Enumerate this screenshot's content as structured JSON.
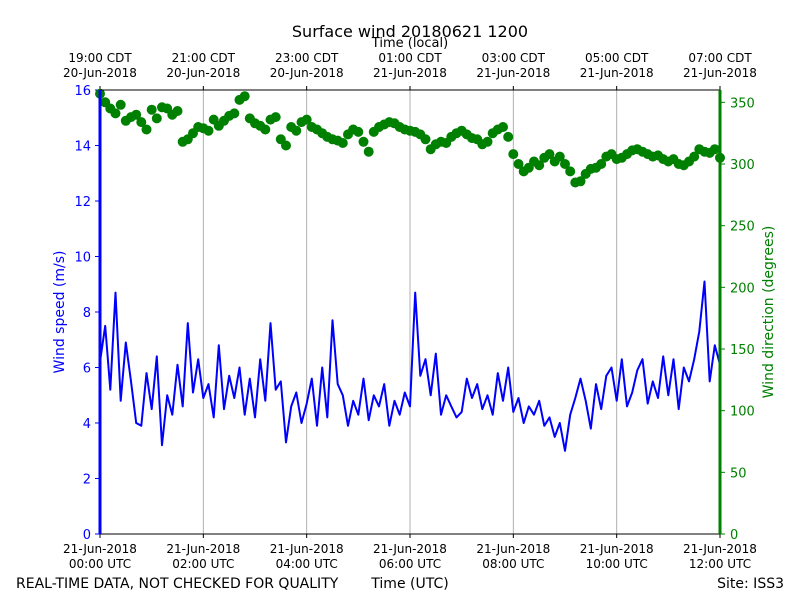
{
  "chart_data": {
    "type": "line",
    "title": "Surface wind 20180621 1200",
    "top_axis_label": "Time (local)",
    "xlabel": "Time (UTC)",
    "ylabel_left": "Wind speed (m/s)",
    "ylabel_right": "Wind direction (degrees)",
    "footer_left": "REAL-TIME DATA, NOT CHECKED FOR QUALITY",
    "footer_right": "Site: ISS3",
    "x_range_hours": [
      0,
      12
    ],
    "ylim_left": [
      0,
      16
    ],
    "ylim_right": [
      0,
      360
    ],
    "left_ticks": [
      "0",
      "2",
      "4",
      "6",
      "8",
      "10",
      "12",
      "14",
      "16"
    ],
    "right_ticks": [
      "0",
      "50",
      "100",
      "150",
      "200",
      "250",
      "300",
      "350"
    ],
    "bottom_ticks": [
      {
        "hour": 0,
        "line1": "21-Jun-2018",
        "line2": "00:00 UTC"
      },
      {
        "hour": 2,
        "line1": "21-Jun-2018",
        "line2": "02:00 UTC"
      },
      {
        "hour": 4,
        "line1": "21-Jun-2018",
        "line2": "04:00 UTC"
      },
      {
        "hour": 6,
        "line1": "21-Jun-2018",
        "line2": "06:00 UTC"
      },
      {
        "hour": 8,
        "line1": "21-Jun-2018",
        "line2": "08:00 UTC"
      },
      {
        "hour": 10,
        "line1": "21-Jun-2018",
        "line2": "10:00 UTC"
      },
      {
        "hour": 12,
        "line1": "21-Jun-2018",
        "line2": "12:00 UTC"
      }
    ],
    "top_ticks": [
      {
        "hour": 0,
        "line1": "19:00 CDT",
        "line2": "20-Jun-2018"
      },
      {
        "hour": 2,
        "line1": "21:00 CDT",
        "line2": "20-Jun-2018"
      },
      {
        "hour": 4,
        "line1": "23:00 CDT",
        "line2": "20-Jun-2018"
      },
      {
        "hour": 6,
        "line1": "01:00 CDT",
        "line2": "21-Jun-2018"
      },
      {
        "hour": 8,
        "line1": "03:00 CDT",
        "line2": "21-Jun-2018"
      },
      {
        "hour": 10,
        "line1": "05:00 CDT",
        "line2": "21-Jun-2018"
      },
      {
        "hour": 12,
        "line1": "07:00 CDT",
        "line2": "21-Jun-2018"
      }
    ],
    "grid_x": true,
    "colors": {
      "speed": "#0000ff",
      "direction": "#008000",
      "grid": "#b0b0b0",
      "text": "#000000"
    },
    "series": [
      {
        "name": "Wind speed",
        "axis": "left",
        "style": "line",
        "hours": [
          0.0,
          0.1,
          0.2,
          0.3,
          0.4,
          0.5,
          0.6,
          0.7,
          0.8,
          0.9,
          1.0,
          1.1,
          1.2,
          1.3,
          1.4,
          1.5,
          1.6,
          1.7,
          1.8,
          1.9,
          2.0,
          2.1,
          2.2,
          2.3,
          2.4,
          2.5,
          2.6,
          2.7,
          2.8,
          2.9,
          3.0,
          3.1,
          3.2,
          3.3,
          3.4,
          3.5,
          3.6,
          3.7,
          3.8,
          3.9,
          4.0,
          4.1,
          4.2,
          4.3,
          4.4,
          4.5,
          4.6,
          4.7,
          4.8,
          4.9,
          5.0,
          5.1,
          5.2,
          5.3,
          5.4,
          5.5,
          5.6,
          5.7,
          5.8,
          5.9,
          6.0,
          6.1,
          6.2,
          6.3,
          6.4,
          6.5,
          6.6,
          6.7,
          6.8,
          6.9,
          7.0,
          7.1,
          7.2,
          7.3,
          7.4,
          7.5,
          7.6,
          7.7,
          7.8,
          7.9,
          8.0,
          8.1,
          8.2,
          8.3,
          8.4,
          8.5,
          8.6,
          8.7,
          8.8,
          8.9,
          9.0,
          9.1,
          9.2,
          9.3,
          9.4,
          9.5,
          9.6,
          9.7,
          9.8,
          9.9,
          10.0,
          10.1,
          10.2,
          10.3,
          10.4,
          10.5,
          10.6,
          10.7,
          10.8,
          10.9,
          11.0,
          11.1,
          11.2,
          11.3,
          11.4,
          11.5,
          11.6,
          11.7,
          11.8,
          11.9,
          12.0
        ],
        "values": [
          6.2,
          7.5,
          5.2,
          8.7,
          4.8,
          6.9,
          5.5,
          4.0,
          3.9,
          5.8,
          4.5,
          6.4,
          3.2,
          5.0,
          4.3,
          6.1,
          4.6,
          7.6,
          5.1,
          6.3,
          4.9,
          5.4,
          4.2,
          6.8,
          4.5,
          5.7,
          4.9,
          6.0,
          4.3,
          5.6,
          4.2,
          6.3,
          4.8,
          7.6,
          5.2,
          5.5,
          3.3,
          4.6,
          5.1,
          4.0,
          4.7,
          5.6,
          3.9,
          6.0,
          4.2,
          7.7,
          5.4,
          5.0,
          3.9,
          4.8,
          4.3,
          5.6,
          4.1,
          5.0,
          4.6,
          5.4,
          3.9,
          4.8,
          4.3,
          5.1,
          4.6,
          8.7,
          5.7,
          6.3,
          5.0,
          6.5,
          4.3,
          5.0,
          4.6,
          4.2,
          4.4,
          5.6,
          4.9,
          5.4,
          4.5,
          5.0,
          4.3,
          5.8,
          4.8,
          6.0,
          4.4,
          4.9,
          4.0,
          4.6,
          4.3,
          4.8,
          3.9,
          4.2,
          3.5,
          4.0,
          3.0,
          4.3,
          4.9,
          5.6,
          4.8,
          3.8,
          5.4,
          4.5,
          5.7,
          6.0,
          4.8,
          6.3,
          4.6,
          5.1,
          5.9,
          6.3,
          4.7,
          5.5,
          4.9,
          6.4,
          5.0,
          6.3,
          4.5,
          6.0,
          5.5,
          6.3,
          7.3,
          9.1,
          5.5,
          6.8,
          6.1
        ]
      },
      {
        "name": "Wind direction",
        "axis": "right",
        "style": "markers",
        "hours": [
          0.0,
          0.1,
          0.2,
          0.3,
          0.4,
          0.5,
          0.6,
          0.7,
          0.8,
          0.9,
          1.0,
          1.1,
          1.2,
          1.3,
          1.4,
          1.5,
          1.6,
          1.7,
          1.8,
          1.9,
          2.0,
          2.1,
          2.2,
          2.3,
          2.4,
          2.5,
          2.6,
          2.7,
          2.8,
          2.9,
          3.0,
          3.1,
          3.2,
          3.3,
          3.4,
          3.5,
          3.6,
          3.7,
          3.8,
          3.9,
          4.0,
          4.1,
          4.2,
          4.3,
          4.4,
          4.5,
          4.6,
          4.7,
          4.8,
          4.9,
          5.0,
          5.1,
          5.2,
          5.3,
          5.4,
          5.5,
          5.6,
          5.7,
          5.8,
          5.9,
          6.0,
          6.1,
          6.2,
          6.3,
          6.4,
          6.5,
          6.6,
          6.7,
          6.8,
          6.9,
          7.0,
          7.1,
          7.2,
          7.3,
          7.4,
          7.5,
          7.6,
          7.7,
          7.8,
          7.9,
          8.0,
          8.1,
          8.2,
          8.3,
          8.4,
          8.5,
          8.6,
          8.7,
          8.8,
          8.9,
          9.0,
          9.1,
          9.2,
          9.3,
          9.4,
          9.5,
          9.6,
          9.7,
          9.8,
          9.9,
          10.0,
          10.1,
          10.2,
          10.3,
          10.4,
          10.5,
          10.6,
          10.7,
          10.8,
          10.9,
          11.0,
          11.1,
          11.2,
          11.3,
          11.4,
          11.5,
          11.6,
          11.7,
          11.8,
          11.9,
          12.0
        ],
        "values": [
          357,
          350,
          345,
          341,
          348,
          335,
          338,
          340,
          334,
          328,
          344,
          337,
          346,
          345,
          340,
          343,
          318,
          320,
          325,
          330,
          329,
          327,
          336,
          331,
          335,
          339,
          341,
          352,
          355,
          337,
          333,
          331,
          328,
          336,
          338,
          320,
          315,
          330,
          327,
          334,
          336,
          330,
          328,
          325,
          322,
          320,
          319,
          317,
          324,
          328,
          326,
          318,
          310,
          326,
          330,
          332,
          334,
          333,
          330,
          328,
          327,
          326,
          324,
          320,
          312,
          316,
          318,
          317,
          322,
          325,
          327,
          324,
          321,
          320,
          316,
          318,
          325,
          328,
          330,
          322,
          308,
          300,
          294,
          297,
          302,
          299,
          305,
          308,
          302,
          306,
          300,
          294,
          285,
          286,
          292,
          296,
          297,
          300,
          306,
          308,
          304,
          305,
          308,
          311,
          312,
          310,
          308,
          306,
          307,
          304,
          302,
          304,
          300,
          299,
          302,
          306,
          312,
          310,
          309,
          312,
          305
        ]
      }
    ]
  }
}
